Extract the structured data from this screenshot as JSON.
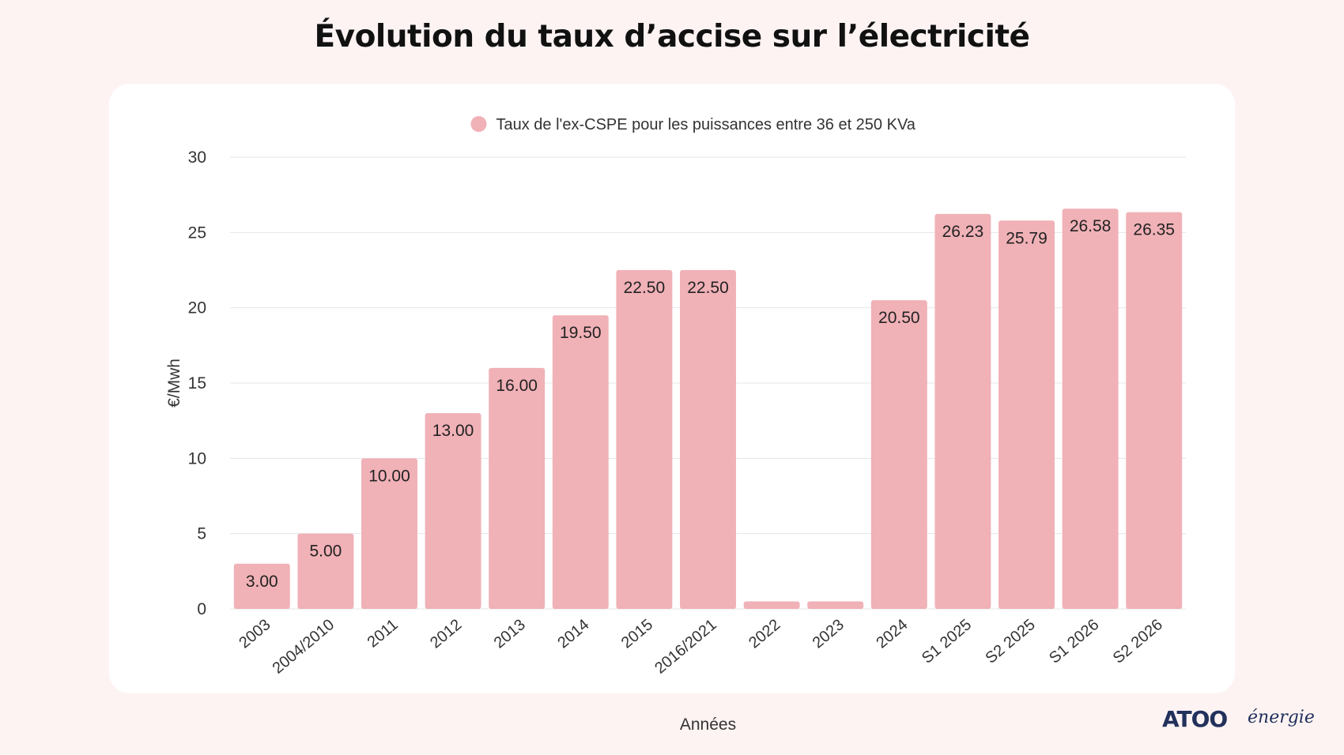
{
  "chart_data": {
    "type": "bar",
    "title": "Évolution du taux d’accise sur l’électricité",
    "xlabel": "Années",
    "ylabel": "€/Mwh",
    "ylim": [
      0,
      30
    ],
    "yticks": [
      0,
      5,
      10,
      15,
      20,
      25,
      30
    ],
    "grid": true,
    "legend_position": "top-center",
    "categories": [
      "2003",
      "2004/2010",
      "2011",
      "2012",
      "2013",
      "2014",
      "2015",
      "2016/2021",
      "2022",
      "2023",
      "2024",
      "S1 2025",
      "S2 2025",
      "S1 2026",
      "S2 2026"
    ],
    "series": [
      {
        "name": "Taux de l'ex-CSPE pour les puissances entre 36 et 250 KVa",
        "color": "#f0b1b7",
        "values": [
          3.0,
          5.0,
          10.0,
          13.0,
          16.0,
          19.5,
          22.5,
          22.5,
          0.5,
          0.5,
          20.5,
          26.23,
          25.79,
          26.58,
          26.35
        ],
        "labels": [
          "3.00",
          "5.00",
          "10.00",
          "13.00",
          "16.00",
          "19.50",
          "22.50",
          "22.50",
          "",
          "",
          "20.50",
          "26.23",
          "25.79",
          "26.58",
          "26.35"
        ]
      }
    ]
  },
  "logo": {
    "brand": "ATOO",
    "subtitle": "énergie"
  }
}
